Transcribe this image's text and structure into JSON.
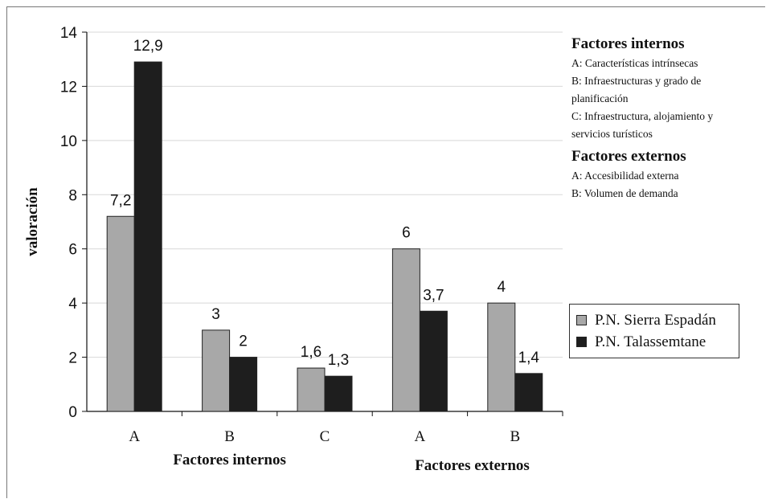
{
  "chart_data": {
    "type": "bar",
    "categories": [
      "A",
      "B",
      "C",
      "A",
      "B"
    ],
    "groups": [
      {
        "label": "Factores internos",
        "categories": [
          "A",
          "B",
          "C"
        ]
      },
      {
        "label": "Factores externos",
        "categories": [
          "A",
          "B"
        ]
      }
    ],
    "series": [
      {
        "name": "P.N. Sierra Espadán",
        "values": [
          7.2,
          3,
          1.6,
          6,
          4
        ],
        "labels": [
          "7,2",
          "3",
          "1,6",
          "6",
          "4"
        ],
        "color": "#a8a8a8"
      },
      {
        "name": "P.N. Talassemtane",
        "values": [
          12.9,
          2,
          1.3,
          3.7,
          1.4
        ],
        "labels": [
          "12,9",
          "2",
          "1,3",
          "3,7",
          "1,4"
        ],
        "color": "#1e1e1e"
      }
    ],
    "ylabel": "valoración",
    "ylim": [
      0,
      14
    ],
    "yticks": [
      0,
      2,
      4,
      6,
      8,
      10,
      12,
      14
    ],
    "grid": true,
    "legend_position": "right"
  },
  "notes": {
    "internos": {
      "heading": "Factores internos",
      "items": [
        "A: Características intrínsecas",
        "B: Infraestructuras y grado de",
        "planificación",
        "C: Infraestructura, alojamiento y",
        "servicios turísticos"
      ]
    },
    "externos": {
      "heading": "Factores externos",
      "items": [
        "A: Accesibilidad externa",
        "B: Volumen de demanda"
      ]
    }
  },
  "legend": {
    "items": [
      {
        "label": "P.N. Sierra Espadán",
        "color": "#a8a8a8"
      },
      {
        "label": "P.N. Talassemtane",
        "color": "#1e1e1e"
      }
    ]
  }
}
